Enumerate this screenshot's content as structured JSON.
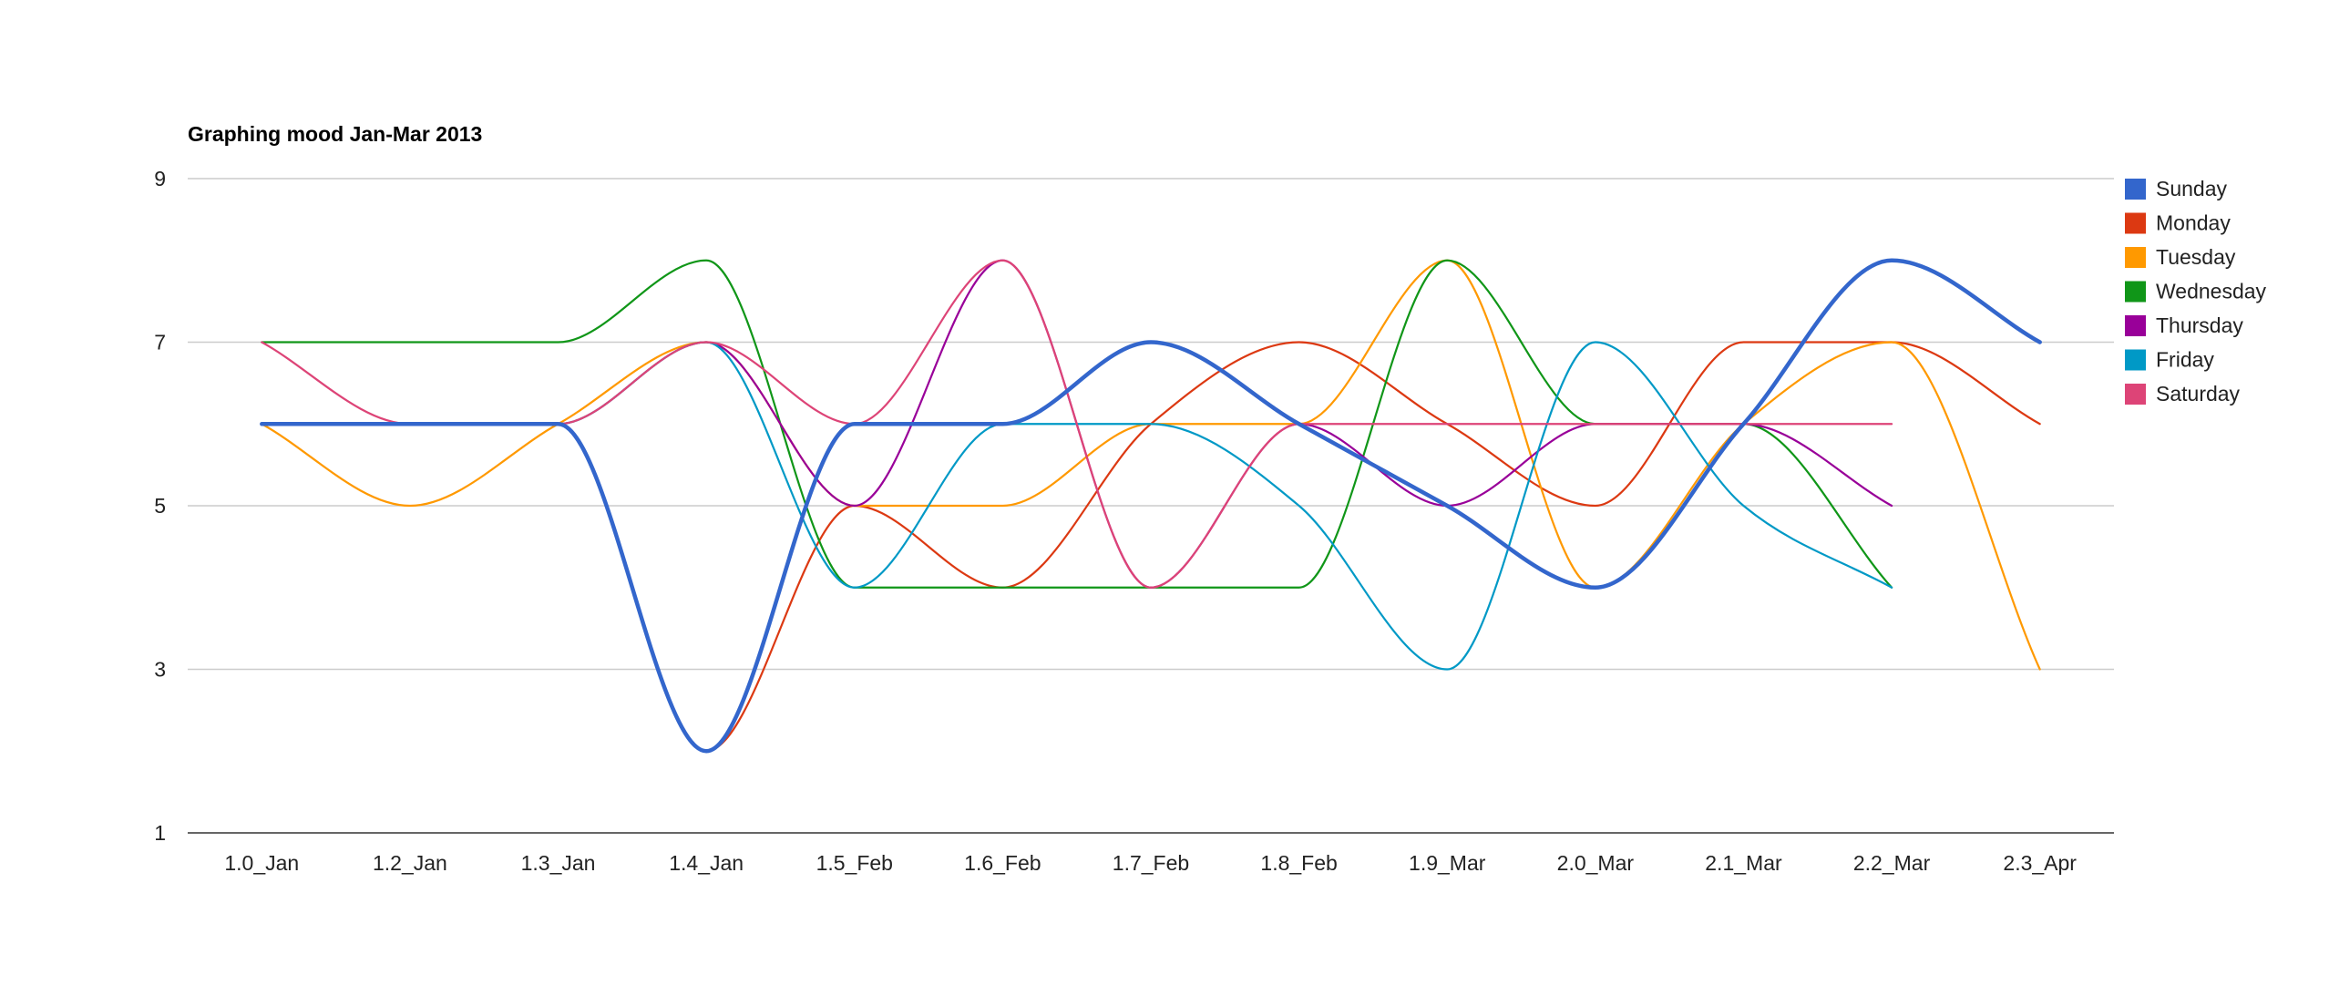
{
  "chart_data": {
    "type": "line",
    "title": "Graphing mood Jan-Mar 2013",
    "xlabel": "",
    "ylabel": "",
    "categories": [
      "1.0_Jan",
      "1.2_Jan",
      "1.3_Jan",
      "1.4_Jan",
      "1.5_Feb",
      "1.6_Feb",
      "1.7_Feb",
      "1.8_Feb",
      "1.9_Mar",
      "2.0_Mar",
      "2.1_Mar",
      "2.2_Mar",
      "2.3_Apr"
    ],
    "yticks": [
      "1",
      "3",
      "5",
      "7",
      "9"
    ],
    "ylim": [
      1,
      9
    ],
    "grid": true,
    "smooth": true,
    "legend_position": "right",
    "series": [
      {
        "name": "Sunday",
        "color": "#3366cc",
        "emphasis": true,
        "values": [
          6,
          6,
          6,
          2,
          6,
          6,
          7,
          6,
          5,
          4,
          6,
          8,
          7
        ]
      },
      {
        "name": "Monday",
        "color": "#dc3912",
        "values": [
          6,
          6,
          6,
          2,
          5,
          4,
          6,
          7,
          6,
          5,
          7,
          7,
          6
        ]
      },
      {
        "name": "Tuesday",
        "color": "#ff9900",
        "values": [
          6,
          5,
          6,
          7,
          5,
          5,
          6,
          6,
          8,
          4,
          6,
          7,
          3
        ]
      },
      {
        "name": "Wednesday",
        "color": "#109618",
        "values": [
          7,
          7,
          7,
          8,
          4,
          4,
          4,
          4,
          8,
          6,
          6,
          4,
          null
        ]
      },
      {
        "name": "Thursday",
        "color": "#990099",
        "values": [
          6,
          6,
          6,
          7,
          5,
          8,
          4,
          6,
          5,
          6,
          6,
          5,
          null
        ]
      },
      {
        "name": "Friday",
        "color": "#0099c6",
        "values": [
          6,
          6,
          6,
          7,
          4,
          6,
          6,
          5,
          3,
          7,
          5,
          4,
          null
        ]
      },
      {
        "name": "Saturday",
        "color": "#dd4477",
        "values": [
          7,
          6,
          6,
          7,
          6,
          8,
          4,
          6,
          6,
          6,
          6,
          6,
          null
        ]
      }
    ]
  }
}
